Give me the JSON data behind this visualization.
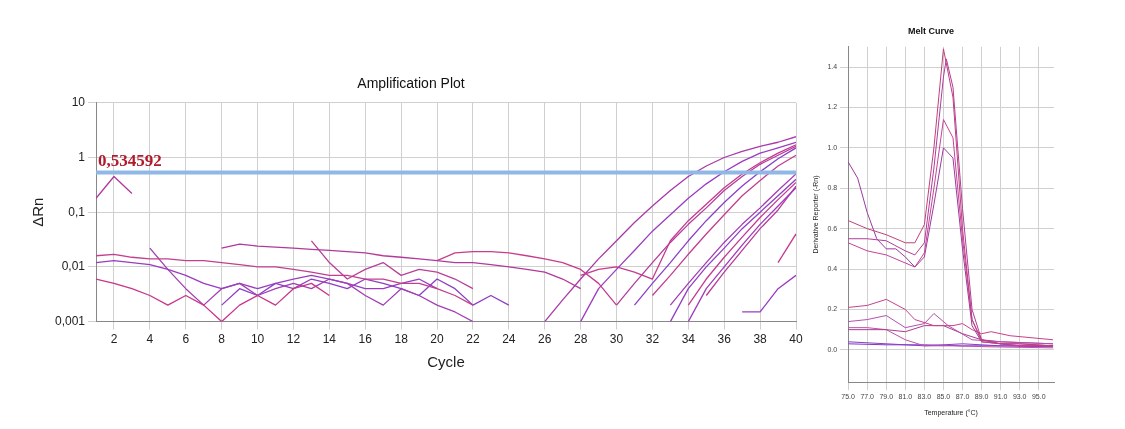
{
  "chart_data": [
    {
      "type": "line",
      "title": "Amplification Plot",
      "xlabel": "Cycle",
      "ylabel": "ΔRn",
      "log": "y",
      "grid": true,
      "xlim": [
        1,
        40
      ],
      "xticks": [
        2,
        4,
        6,
        8,
        10,
        12,
        14,
        16,
        18,
        20,
        22,
        24,
        26,
        28,
        30,
        32,
        34,
        36,
        38,
        40
      ],
      "ylim": [
        0.001,
        10
      ],
      "yticks": [
        {
          "value": 0.001,
          "label": "0,001"
        },
        {
          "value": 0.01,
          "label": "0,01"
        },
        {
          "value": 0.1,
          "label": "0,1"
        },
        {
          "value": 1,
          "label": "1"
        },
        {
          "value": 10,
          "label": "10"
        }
      ],
      "ref_lines": [
        {
          "axis": "y",
          "value": 0.534592,
          "label": "0,534592",
          "color": "#8fb8e6"
        }
      ],
      "series": [
        {
          "color": "#b0389e",
          "x": [
            1,
            2,
            3
          ],
          "values": [
            0.18,
            0.45,
            0.22
          ]
        },
        {
          "color": "#c0408f",
          "x": [
            1,
            2,
            3,
            4,
            5,
            6,
            7,
            8,
            9,
            10,
            11,
            12,
            13,
            14,
            15,
            16,
            17,
            18,
            19,
            20,
            21,
            22
          ],
          "values": [
            0.016,
            0.017,
            0.015,
            0.014,
            0.014,
            0.013,
            0.013,
            0.012,
            0.011,
            0.01,
            0.01,
            0.009,
            0.008,
            0.007,
            0.007,
            0.006,
            0.006,
            0.005,
            0.005,
            0.004,
            0.003,
            0.002
          ]
        },
        {
          "color": "#9a3cc0",
          "x": [
            1,
            2,
            3,
            4,
            5,
            6,
            7,
            8,
            9,
            10,
            11,
            12,
            13,
            14,
            15,
            16,
            17,
            18,
            19,
            20
          ],
          "values": [
            0.012,
            0.013,
            0.012,
            0.011,
            0.009,
            0.007,
            0.005,
            0.004,
            0.005,
            0.004,
            0.005,
            0.006,
            0.007,
            0.006,
            0.005,
            0.004,
            0.004,
            0.005,
            0.006,
            0.004
          ]
        },
        {
          "color": "#c8358a",
          "x": [
            1,
            2,
            3,
            4,
            5,
            6,
            7,
            8,
            9,
            10,
            11,
            12,
            13,
            14
          ],
          "values": [
            0.006,
            0.005,
            0.004,
            0.003,
            0.002,
            0.003,
            0.002,
            0.001,
            0.002,
            0.003,
            0.002,
            0.004,
            0.005,
            0.003
          ]
        },
        {
          "color": "#a23fb4",
          "x": [
            4,
            5,
            6,
            7,
            8,
            9,
            10,
            11,
            12,
            13,
            14,
            15,
            16,
            17,
            18,
            19,
            20,
            21,
            22
          ],
          "values": [
            0.022,
            0.009,
            0.004,
            0.002,
            0.004,
            0.005,
            0.003,
            0.004,
            0.005,
            0.004,
            0.006,
            0.005,
            0.003,
            0.002,
            0.004,
            0.003,
            0.002,
            0.0015,
            0.001
          ]
        },
        {
          "color": "#b2399a",
          "x": [
            8,
            9,
            10,
            11,
            12,
            13,
            14,
            15,
            16,
            17,
            18,
            19,
            20,
            21,
            22,
            23,
            24,
            25,
            26,
            27,
            28
          ],
          "values": [
            0.022,
            0.026,
            0.024,
            0.023,
            0.022,
            0.021,
            0.02,
            0.019,
            0.018,
            0.016,
            0.015,
            0.014,
            0.013,
            0.012,
            0.012,
            0.011,
            0.01,
            0.009,
            0.008,
            0.006,
            0.004
          ]
        },
        {
          "color": "#c83c8c",
          "x": [
            20,
            21,
            22,
            23,
            24,
            25,
            26,
            27,
            28,
            29,
            30
          ],
          "values": [
            0.013,
            0.018,
            0.019,
            0.019,
            0.018,
            0.016,
            0.014,
            0.012,
            0.009,
            0.005,
            0.002
          ]
        },
        {
          "color": "#8e3ec4",
          "x": [
            8,
            9,
            10,
            11,
            12,
            13,
            14,
            15,
            16,
            17,
            18,
            19,
            20,
            21,
            22,
            23,
            24
          ],
          "values": [
            0.002,
            0.004,
            0.003,
            0.005,
            0.004,
            0.006,
            0.005,
            0.004,
            0.006,
            0.005,
            0.004,
            0.003,
            0.006,
            0.004,
            0.002,
            0.003,
            0.002
          ]
        },
        {
          "color": "#b8409a",
          "x": [
            13,
            14,
            15,
            16,
            17,
            18,
            19,
            20,
            21,
            22
          ],
          "values": [
            0.03,
            0.012,
            0.006,
            0.009,
            0.012,
            0.007,
            0.009,
            0.008,
            0.006,
            0.004
          ]
        },
        {
          "color": "#a83aa8",
          "x": [
            26,
            27,
            28,
            29,
            30,
            31,
            32,
            33,
            34,
            35,
            36,
            37,
            38,
            39,
            40
          ],
          "values": [
            0.001,
            0.0025,
            0.006,
            0.014,
            0.03,
            0.065,
            0.13,
            0.25,
            0.45,
            0.7,
            1.0,
            1.3,
            1.6,
            1.9,
            2.4
          ]
        },
        {
          "color": "#9c3cc2",
          "x": [
            28,
            29,
            30,
            31,
            32,
            33,
            34,
            35,
            36,
            37,
            38,
            39,
            40
          ],
          "values": [
            0.001,
            0.004,
            0.009,
            0.02,
            0.045,
            0.09,
            0.18,
            0.33,
            0.55,
            0.85,
            1.2,
            1.5,
            1.9
          ]
        },
        {
          "color": "#c43a8e",
          "x": [
            28,
            29,
            30,
            31,
            32,
            33,
            34,
            35,
            36,
            37,
            38,
            39,
            40
          ],
          "values": [
            0.007,
            0.009,
            0.01,
            0.008,
            0.006,
            0.03,
            0.07,
            0.14,
            0.28,
            0.5,
            0.8,
            1.2,
            1.7
          ]
        },
        {
          "color": "#b43c9e",
          "x": [
            30,
            31,
            32,
            33,
            34,
            35,
            36,
            37,
            38,
            39,
            40
          ],
          "values": [
            0.002,
            0.005,
            0.012,
            0.028,
            0.06,
            0.12,
            0.25,
            0.45,
            0.75,
            1.1,
            1.6
          ]
        },
        {
          "color": "#8a40c8",
          "x": [
            31,
            32,
            33,
            34,
            35,
            36,
            37,
            38,
            39,
            40
          ],
          "values": [
            0.002,
            0.005,
            0.012,
            0.03,
            0.07,
            0.15,
            0.3,
            0.55,
            0.95,
            1.5
          ]
        },
        {
          "color": "#c0408f",
          "x": [
            32,
            33,
            34,
            35,
            36,
            37,
            38,
            39,
            40
          ],
          "values": [
            0.003,
            0.007,
            0.017,
            0.04,
            0.09,
            0.2,
            0.38,
            0.7,
            1.1
          ]
        },
        {
          "color": "#a63cb6",
          "x": [
            33,
            34,
            35,
            36,
            37,
            38,
            39,
            40
          ],
          "values": [
            0.002,
            0.005,
            0.012,
            0.028,
            0.06,
            0.12,
            0.25,
            0.5
          ]
        },
        {
          "color": "#9040c6",
          "x": [
            33,
            34,
            35,
            36,
            37,
            38,
            39,
            40
          ],
          "values": [
            0.001,
            0.004,
            0.01,
            0.022,
            0.05,
            0.1,
            0.2,
            0.4
          ]
        },
        {
          "color": "#c43a90",
          "x": [
            34,
            35,
            36,
            37,
            38,
            39,
            40
          ],
          "values": [
            0.002,
            0.006,
            0.015,
            0.035,
            0.08,
            0.17,
            0.35
          ]
        },
        {
          "color": "#a03cbc",
          "x": [
            34,
            35,
            36,
            37,
            38,
            39,
            40
          ],
          "values": [
            0.001,
            0.004,
            0.01,
            0.025,
            0.06,
            0.13,
            0.28
          ]
        },
        {
          "color": "#b83c98",
          "x": [
            35,
            36,
            37,
            38,
            39,
            40
          ],
          "values": [
            0.003,
            0.008,
            0.02,
            0.05,
            0.11,
            0.3
          ]
        },
        {
          "color": "#c43a8e",
          "x": [
            39,
            40
          ],
          "values": [
            0.012,
            0.04
          ]
        },
        {
          "color": "#9a3cc0",
          "x": [
            37,
            38,
            39,
            40
          ],
          "values": [
            0.0015,
            0.0015,
            0.004,
            0.007
          ]
        }
      ]
    },
    {
      "type": "line",
      "title": "Melt Curve",
      "xlabel": "Temperature (°C)",
      "ylabel": "Derivative Reporter (-Rn)",
      "grid": true,
      "xlim": [
        75,
        96.6
      ],
      "xticks": [
        {
          "value": 75,
          "label": "75.0"
        },
        {
          "value": 77,
          "label": "77.0"
        },
        {
          "value": 79,
          "label": "79.0"
        },
        {
          "value": 81,
          "label": "81.0"
        },
        {
          "value": 83,
          "label": "83.0"
        },
        {
          "value": 85,
          "label": "85.0"
        },
        {
          "value": 87,
          "label": "87.0"
        },
        {
          "value": 89,
          "label": "89.0"
        },
        {
          "value": 91,
          "label": "91.0"
        },
        {
          "value": 93,
          "label": "93.0"
        },
        {
          "value": 95,
          "label": "95.0"
        }
      ],
      "ylim": [
        -0.16,
        1.5
      ],
      "yticks": [
        {
          "value": 0,
          "label": "0.0"
        },
        {
          "value": 0.2,
          "label": "0.2"
        },
        {
          "value": 0.4,
          "label": "0.4"
        },
        {
          "value": 0.6,
          "label": "0.6"
        },
        {
          "value": 0.8,
          "label": "0.8"
        },
        {
          "value": 1,
          "label": "1.0"
        },
        {
          "value": 1.2,
          "label": "1.2"
        },
        {
          "value": 1.4,
          "label": "1.4"
        }
      ],
      "series": [
        {
          "color": "#c0407a",
          "x": [
            75,
            77,
            79,
            81,
            82,
            83,
            84,
            85,
            86,
            87,
            88,
            89,
            91,
            93,
            96.5
          ],
          "values": [
            0.64,
            0.6,
            0.57,
            0.53,
            0.53,
            0.62,
            1.0,
            1.49,
            1.25,
            0.6,
            0.15,
            0.05,
            0.03,
            0.03,
            0.02
          ]
        },
        {
          "color": "#b03c9c",
          "x": [
            75,
            77,
            79,
            81,
            82,
            83,
            84,
            85,
            85.3,
            86,
            87,
            88,
            89,
            91,
            93,
            96.5
          ],
          "values": [
            0.55,
            0.55,
            0.54,
            0.49,
            0.47,
            0.53,
            0.9,
            1.35,
            1.44,
            1.3,
            0.7,
            0.2,
            0.05,
            0.03,
            0.03,
            0.02
          ]
        },
        {
          "color": "#c8409a",
          "x": [
            75,
            77,
            79,
            81,
            82,
            83,
            84,
            85,
            86,
            87,
            88,
            89,
            91,
            93,
            96.5
          ],
          "values": [
            0.53,
            0.49,
            0.47,
            0.43,
            0.41,
            0.48,
            0.8,
            1.14,
            1.05,
            0.55,
            0.15,
            0.04,
            0.03,
            0.02,
            0.02
          ]
        },
        {
          "color": "#9a3a9e",
          "x": [
            75,
            76,
            77,
            78,
            79,
            80,
            81,
            82,
            83,
            84,
            85,
            86,
            87,
            88,
            89,
            91,
            93,
            96.5
          ],
          "values": [
            0.93,
            0.85,
            0.68,
            0.55,
            0.5,
            0.5,
            0.46,
            0.41,
            0.46,
            0.72,
            1.0,
            0.95,
            0.5,
            0.12,
            0.04,
            0.03,
            0.02,
            0.02
          ]
        },
        {
          "color": "#c8408c",
          "x": [
            75,
            77,
            79,
            81,
            82,
            84,
            86,
            87,
            88,
            89,
            90,
            92,
            96.5
          ],
          "values": [
            0.21,
            0.22,
            0.25,
            0.2,
            0.15,
            0.12,
            0.12,
            0.13,
            0.1,
            0.08,
            0.09,
            0.07,
            0.05
          ]
        },
        {
          "color": "#b450b0",
          "x": [
            75,
            77,
            79,
            81,
            83,
            84,
            85.5,
            88,
            91,
            96.5
          ],
          "values": [
            0.14,
            0.15,
            0.17,
            0.11,
            0.13,
            0.18,
            0.12,
            0.05,
            0.04,
            0.03
          ]
        },
        {
          "color": "#a83c8c",
          "x": [
            75,
            77,
            79,
            81,
            83,
            85,
            87,
            89,
            91,
            96.5
          ],
          "values": [
            0.1,
            0.1,
            0.1,
            0.09,
            0.12,
            0.12,
            0.08,
            0.05,
            0.04,
            0.03
          ]
        },
        {
          "color": "#c050a8",
          "x": [
            75,
            77,
            79,
            81,
            83,
            86,
            90,
            96.5
          ],
          "values": [
            0.11,
            0.11,
            0.1,
            0.05,
            0.02,
            0.02,
            0.015,
            0.01
          ]
        },
        {
          "color": "#8a3cc4",
          "x": [
            75,
            79,
            83,
            87,
            91,
            96.5
          ],
          "values": [
            0.04,
            0.03,
            0.02,
            0.03,
            0.02,
            0.02
          ]
        },
        {
          "color": "#7a38c8",
          "x": [
            75,
            79,
            83,
            87,
            91,
            96.5
          ],
          "values": [
            0.03,
            0.025,
            0.025,
            0.02,
            0.02,
            0.015
          ]
        }
      ]
    }
  ]
}
